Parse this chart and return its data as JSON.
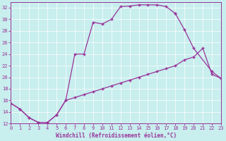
{
  "background_color": "#c8eeee",
  "line_color": "#993399",
  "xlabel": "Windchill (Refroidissement éolien,°C)",
  "xlim": [
    0,
    23
  ],
  "ylim": [
    12,
    33
  ],
  "xticks": [
    0,
    1,
    2,
    3,
    4,
    5,
    6,
    7,
    8,
    9,
    10,
    11,
    12,
    13,
    14,
    15,
    16,
    17,
    18,
    19,
    20,
    21,
    22,
    23
  ],
  "yticks": [
    12,
    14,
    16,
    18,
    20,
    22,
    24,
    26,
    28,
    30,
    32
  ],
  "curve1_x": [
    0,
    1,
    2,
    3,
    4,
    5,
    6,
    7,
    8,
    9,
    10,
    11,
    12,
    13,
    14,
    15,
    16,
    17,
    18
  ],
  "curve1_y": [
    15.5,
    14.5,
    13.0,
    12.2,
    12.2,
    13.5,
    16.0,
    24.0,
    24.0,
    29.5,
    29.2,
    30.0,
    32.2,
    32.3,
    32.5,
    32.5,
    32.5,
    32.2,
    31.0
  ],
  "curve2_x": [
    18,
    19,
    20,
    22,
    23
  ],
  "curve2_y": [
    31.0,
    28.2,
    25.0,
    21.0,
    19.8
  ],
  "curve3_x": [
    0,
    1,
    2,
    3,
    4,
    5,
    6,
    7,
    8,
    9,
    10,
    11,
    12,
    13,
    14,
    15,
    16,
    17,
    18,
    19,
    20,
    21,
    22,
    23
  ],
  "curve3_y": [
    15.5,
    14.5,
    13.0,
    12.2,
    12.2,
    13.5,
    16.0,
    16.5,
    17.0,
    17.5,
    18.0,
    18.5,
    19.0,
    19.5,
    20.0,
    20.5,
    21.0,
    21.5,
    22.0,
    23.0,
    23.5,
    25.0,
    20.5,
    19.8
  ],
  "grid_color": "white",
  "tick_labelsize": 5,
  "xlabel_fontsize": 5.5
}
